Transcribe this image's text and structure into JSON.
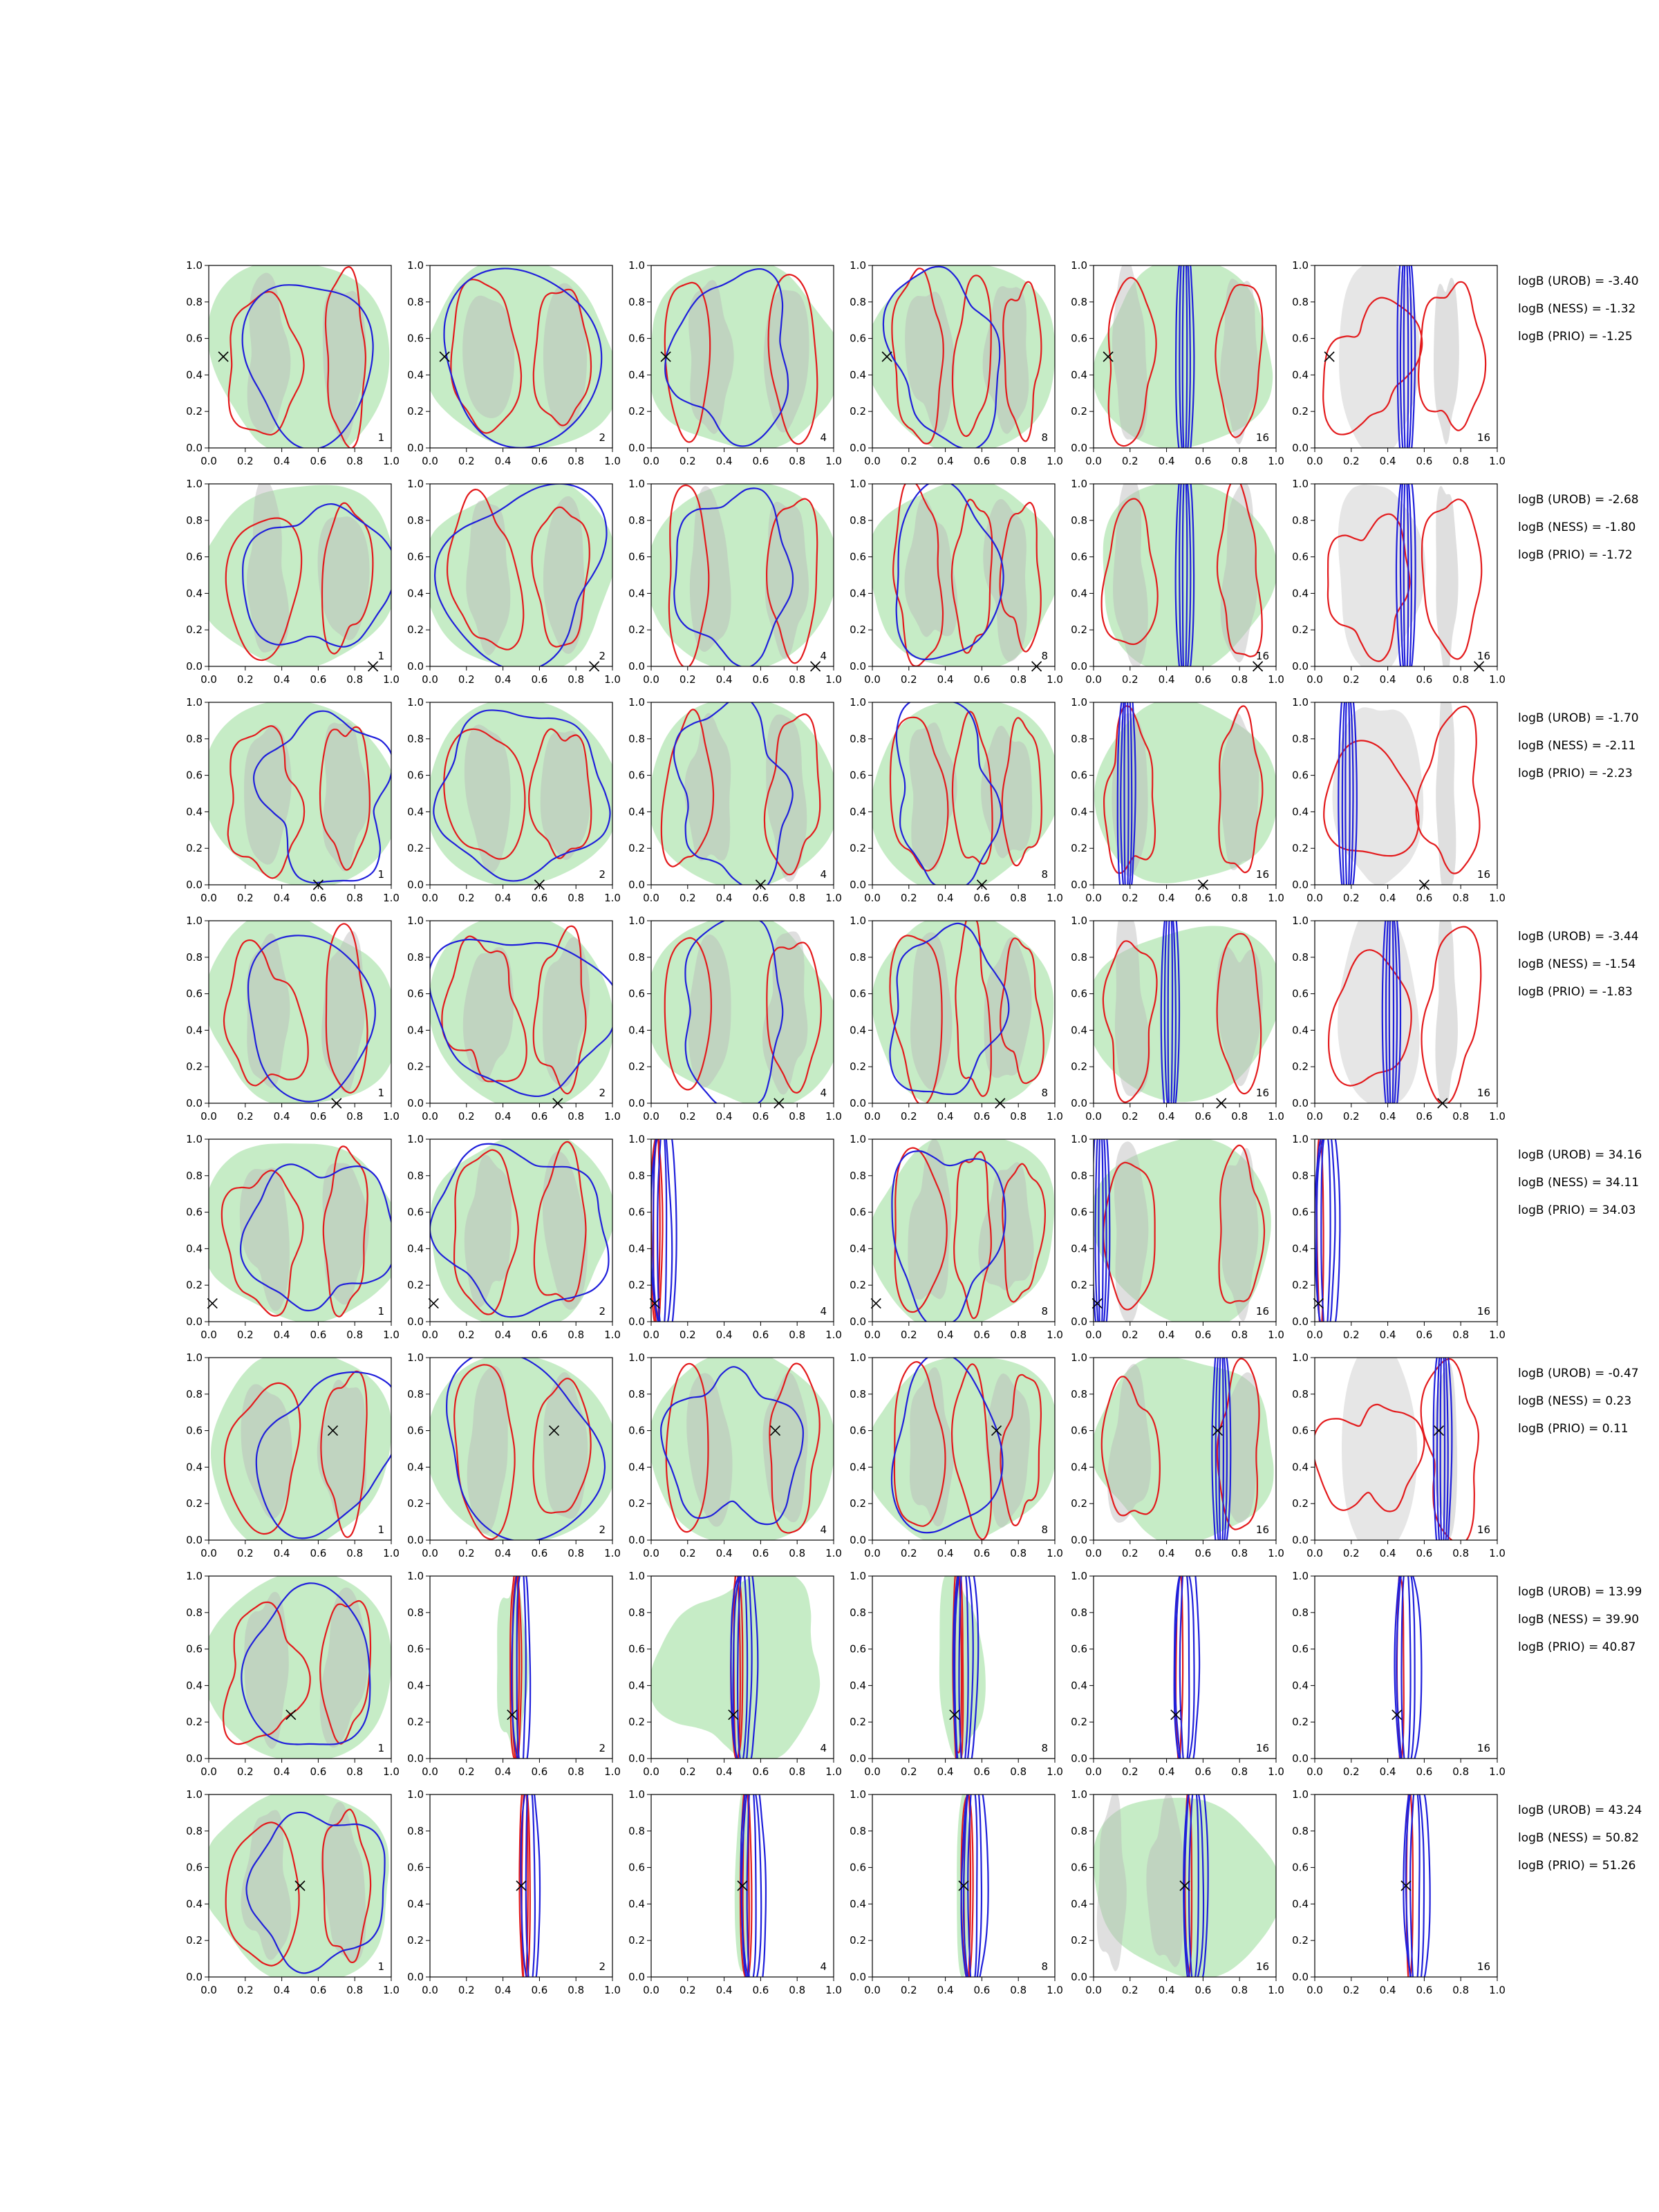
{
  "chart_data": {
    "type": "contour-grid",
    "rows": 8,
    "columns": 6,
    "xlim": [
      0.0,
      1.0
    ],
    "ylim": [
      0.0,
      1.0
    ],
    "x_ticks": [
      "0.0",
      "0.2",
      "0.4",
      "0.6",
      "0.8",
      "1.0"
    ],
    "y_ticks": [
      "0.0",
      "0.2",
      "0.4",
      "0.6",
      "0.8",
      "1.0"
    ],
    "panel_counts": [
      [
        "1",
        "2",
        "4",
        "8",
        "16",
        "16"
      ],
      [
        "1",
        "2",
        "4",
        "8",
        "16",
        "16"
      ],
      [
        "1",
        "2",
        "4",
        "8",
        "16",
        "16"
      ],
      [
        "1",
        "2",
        "4",
        "8",
        "16",
        "16"
      ],
      [
        "1",
        "2",
        "4",
        "8",
        "16",
        "16"
      ],
      [
        "1",
        "2",
        "4",
        "8",
        "16",
        "16"
      ],
      [
        "1",
        "2",
        "4",
        "8",
        "16",
        "16"
      ],
      [
        "1",
        "2",
        "4",
        "8",
        "16",
        "16"
      ]
    ],
    "markers": [
      {
        "x": 0.08,
        "y": 0.5
      },
      {
        "x": 0.9,
        "y": 0.0
      },
      {
        "x": 0.6,
        "y": 0.0
      },
      {
        "x": 0.7,
        "y": 0.0
      },
      {
        "x": 0.02,
        "y": 0.1
      },
      {
        "x": 0.68,
        "y": 0.6
      },
      {
        "x": 0.45,
        "y": 0.24
      },
      {
        "x": 0.5,
        "y": 0.5
      }
    ],
    "row_stats": [
      [
        "logB (UROB) = -3.40",
        "logB (NESS) = -1.32",
        "logB (PRIO) = -1.25"
      ],
      [
        "logB (UROB) = -2.68",
        "logB (NESS) = -1.80",
        "logB (PRIO) = -1.72"
      ],
      [
        "logB (UROB) = -1.70",
        "logB (NESS) = -2.11",
        "logB (PRIO) = -2.23"
      ],
      [
        "logB (UROB) = -3.44",
        "logB (NESS) = -1.54",
        "logB (PRIO) = -1.83"
      ],
      [
        "logB (UROB) = 34.16",
        "logB (NESS) = 34.11",
        "logB (PRIO) = 34.03"
      ],
      [
        "logB (UROB) = -0.47",
        "logB (NESS) = 0.23",
        "logB (PRIO) = 0.11"
      ],
      [
        "logB (UROB) = 13.99",
        "logB (NESS) = 39.90",
        "logB (PRIO) = 40.87"
      ],
      [
        "logB (UROB) = 43.24",
        "logB (NESS) = 50.82",
        "logB (PRIO) = 51.26"
      ]
    ],
    "colors": {
      "red_contour": "#e31a1c",
      "blue_contour": "#1f1fdb",
      "green_fill": "#c6ecc6",
      "gray_fill": "#b8b8b8",
      "light_gray_fill": "#e6e6e6",
      "marker": "#000000"
    }
  }
}
